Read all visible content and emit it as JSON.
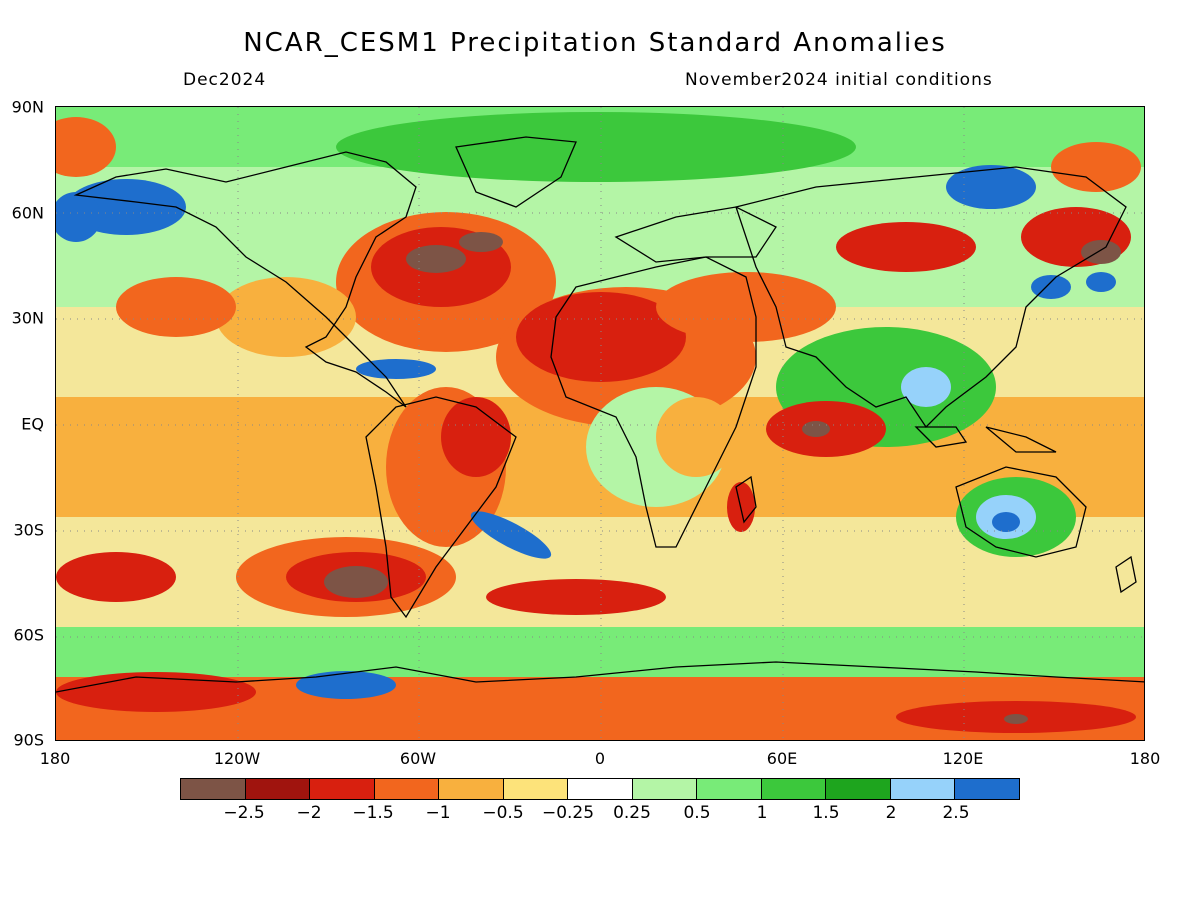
{
  "header": {
    "title": "NCAR_CESM1 Precipitation Standard Anomalies",
    "valid_month": "Dec2024",
    "initial_conditions": "November2024 initial conditions"
  },
  "axes": {
    "lat_labels": [
      "90N",
      "60N",
      "30N",
      "EQ",
      "30S",
      "60S",
      "90S"
    ],
    "lon_labels": [
      "180",
      "120W",
      "60W",
      "0",
      "60E",
      "120E",
      "180"
    ]
  },
  "legend": {
    "colors": [
      "#7d5446",
      "#a0140e",
      "#d8200f",
      "#f2661e",
      "#f8b03e",
      "#fde37a",
      "#ffffff",
      "#b4f5a6",
      "#78eb78",
      "#3cc83c",
      "#1ea51e",
      "#96d2fa",
      "#1e6ecd"
    ],
    "labels": [
      "−2.5",
      "−2",
      "−1.5",
      "−1",
      "−0.5",
      "−0.25",
      "0.25",
      "0.5",
      "1",
      "1.5",
      "2",
      "2.5"
    ]
  },
  "map_palette": {
    "ocean_base": "#f4e79a",
    "coastline": "#000000"
  }
}
